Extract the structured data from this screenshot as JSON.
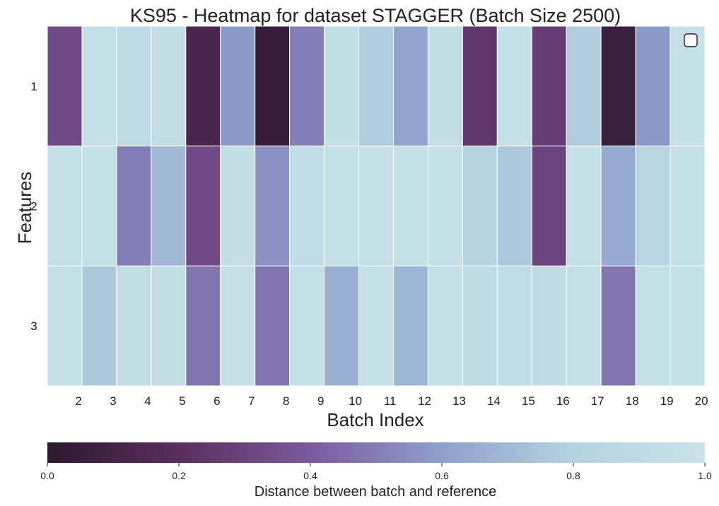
{
  "chart_data": {
    "type": "heatmap",
    "title": "KS95 - Heatmap for dataset STAGGER (Batch Size 2500)",
    "xlabel": "Batch Index",
    "ylabel": "Features",
    "x_categories": [
      "2",
      "3",
      "4",
      "5",
      "6",
      "7",
      "8",
      "9",
      "10",
      "11",
      "12",
      "13",
      "14",
      "15",
      "16",
      "17",
      "18",
      "19",
      "20"
    ],
    "y_categories": [
      "1",
      "2",
      "3"
    ],
    "values": [
      [
        0.33,
        0.95,
        0.9,
        0.94,
        0.12,
        0.58,
        0.04,
        0.5,
        0.94,
        0.78,
        0.62,
        0.94,
        0.24,
        0.95,
        0.27,
        0.78,
        0.05,
        0.58,
        0.96
      ],
      [
        0.95,
        0.95,
        0.5,
        0.7,
        0.33,
        0.94,
        0.56,
        0.92,
        0.95,
        0.95,
        0.95,
        0.95,
        0.82,
        0.76,
        0.3,
        0.95,
        0.64,
        0.84,
        0.95
      ],
      [
        0.95,
        0.76,
        0.94,
        0.94,
        0.48,
        0.95,
        0.48,
        0.95,
        0.66,
        0.95,
        0.68,
        0.95,
        0.9,
        0.92,
        0.9,
        0.95,
        0.48,
        0.95,
        0.95
      ]
    ],
    "colorbar": {
      "label": "Distance between batch and reference",
      "range": [
        0.0,
        1.0
      ],
      "ticks": [
        "0.0",
        "0.2",
        "0.4",
        "0.6",
        "0.8",
        "1.0"
      ],
      "ticks_values": [
        0.0,
        0.2,
        0.4,
        0.6,
        0.8,
        1.0
      ]
    },
    "colormap": [
      "#2c1a2e",
      "#5a2d5e",
      "#7b5a9c",
      "#8fa0cd",
      "#b5d2df",
      "#c9e3e8"
    ],
    "legend": "top-right (empty)"
  }
}
